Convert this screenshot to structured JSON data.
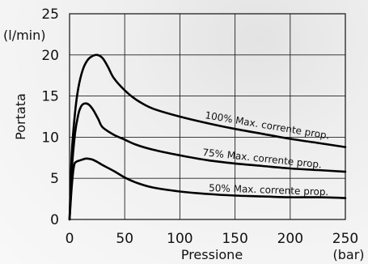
{
  "chart_data": {
    "type": "line",
    "xlabel": "Pressione",
    "xunit": "(bar)",
    "ylabel": "Portata",
    "yunit": "(l/min)",
    "xlim": [
      0,
      250
    ],
    "ylim": [
      0,
      25
    ],
    "xticks": [
      0,
      50,
      100,
      150,
      200,
      250
    ],
    "yticks": [
      0,
      5,
      10,
      15,
      20,
      25
    ],
    "grid": true,
    "series": [
      {
        "name": "100% Max. corrente prop.",
        "x": [
          0,
          2,
          5,
          8,
          12,
          16,
          20,
          25,
          30,
          35,
          40,
          50,
          60,
          75,
          100,
          125,
          150,
          175,
          200,
          225,
          250
        ],
        "y": [
          0,
          8,
          13,
          16,
          18.2,
          19.3,
          19.8,
          20.0,
          19.6,
          18.5,
          17.2,
          15.7,
          14.6,
          13.5,
          12.5,
          11.7,
          11.0,
          10.4,
          9.8,
          9.3,
          8.8
        ]
      },
      {
        "name": "75% Max. corrente prop.",
        "x": [
          0,
          2,
          5,
          8,
          10,
          12,
          15,
          18,
          22,
          26,
          30,
          40,
          50,
          60,
          75,
          100,
          125,
          150,
          175,
          200,
          225,
          250
        ],
        "y": [
          0,
          6,
          10.5,
          12.8,
          13.6,
          14.0,
          14.1,
          13.9,
          13.2,
          12.2,
          11.2,
          10.3,
          9.7,
          9.1,
          8.5,
          7.8,
          7.2,
          6.8,
          6.5,
          6.2,
          6.0,
          5.8
        ]
      },
      {
        "name": "50% Max. corrente prop.",
        "x": [
          0,
          2,
          4,
          6,
          10,
          15,
          20,
          25,
          30,
          40,
          50,
          60,
          75,
          100,
          125,
          150,
          175,
          200,
          225,
          250
        ],
        "y": [
          0,
          4,
          6.5,
          7.0,
          7.2,
          7.4,
          7.3,
          7.0,
          6.6,
          5.9,
          5.1,
          4.5,
          3.9,
          3.4,
          3.1,
          2.9,
          2.8,
          2.7,
          2.7,
          2.6
        ]
      }
    ]
  }
}
